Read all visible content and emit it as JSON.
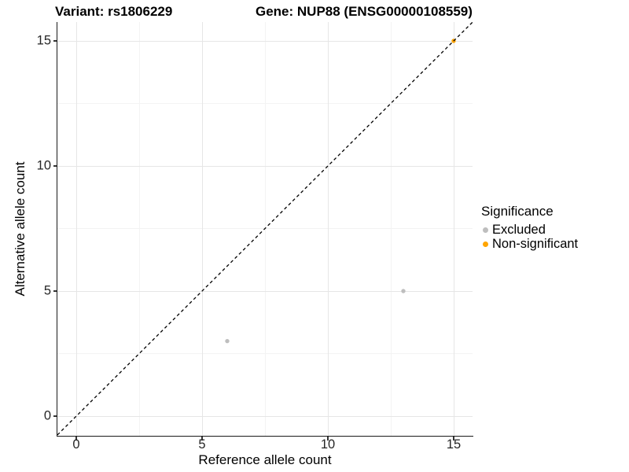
{
  "titles": {
    "variant": "Variant: rs1806229",
    "gene": "Gene: NUP88 (ENSG00000108559)"
  },
  "legend": {
    "title": "Significance",
    "items": [
      {
        "label": "Excluded",
        "color": "#bebebe"
      },
      {
        "label": "Non-significant",
        "color": "#ffa500"
      }
    ]
  },
  "chart_data": {
    "type": "scatter",
    "title": "Variant: rs1806229 | Gene: NUP88 (ENSG00000108559)",
    "xlabel": "Reference allele count",
    "ylabel": "Alternative allele count",
    "xlim": [
      -0.75,
      15.75
    ],
    "ylim": [
      -0.786,
      15.755
    ],
    "xticks": [
      0,
      5,
      10,
      15
    ],
    "yticks": [
      0,
      5,
      10,
      15
    ],
    "x_minor": [
      2.5,
      7.5,
      12.5
    ],
    "y_minor": [
      2.5,
      7.5,
      12.5
    ],
    "grid": true,
    "legend_position": "right",
    "legend_title": "Significance",
    "series": [
      {
        "name": "Excluded",
        "color": "#bebebe",
        "points": [
          [
            6,
            3
          ],
          [
            13,
            5
          ]
        ]
      },
      {
        "name": "Non-significant",
        "color": "#ffa500",
        "points": [
          [
            15,
            15
          ]
        ]
      }
    ],
    "identity_line": {
      "type": "y=x",
      "style": "dashed",
      "color": "#000000"
    }
  },
  "colors": {
    "background": "#ffffff",
    "grid_major": "#e6e6e6",
    "grid_minor": "#f3f3f3",
    "axis_line": "#1a1a1a",
    "tick_text": "#262626",
    "title_text": "#000000"
  }
}
